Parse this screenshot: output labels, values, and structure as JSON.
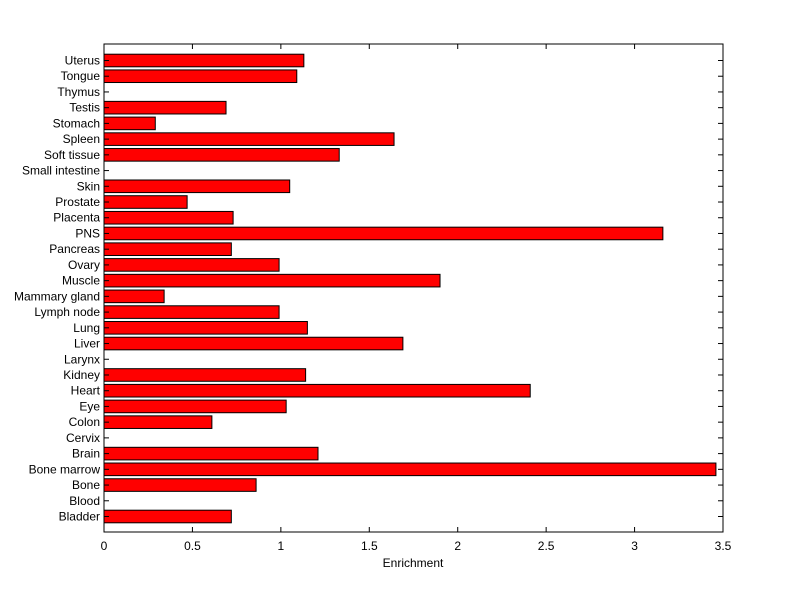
{
  "chart_data": {
    "type": "bar",
    "orientation": "horizontal",
    "title": "",
    "xlabel": "Enrichment",
    "ylabel": "",
    "xlim": [
      0,
      3.5
    ],
    "xticks": [
      0,
      0.5,
      1,
      1.5,
      2,
      2.5,
      3,
      3.5
    ],
    "xtick_labels": [
      "0",
      "0.5",
      "1",
      "1.5",
      "2",
      "2.5",
      "3",
      "3.5"
    ],
    "grid": false,
    "legend": "none",
    "bar_color": "#ff0000",
    "bar_edge_color": "#000000",
    "categories": [
      "Bladder",
      "Blood",
      "Bone",
      "Bone marrow",
      "Brain",
      "Cervix",
      "Colon",
      "Eye",
      "Heart",
      "Kidney",
      "Larynx",
      "Liver",
      "Lung",
      "Lymph node",
      "Mammary gland",
      "Muscle",
      "Ovary",
      "Pancreas",
      "PNS",
      "Placenta",
      "Prostate",
      "Skin",
      "Small intestine",
      "Soft tissue",
      "Spleen",
      "Stomach",
      "Testis",
      "Thymus",
      "Tongue",
      "Uterus"
    ],
    "values": [
      0.72,
      0,
      0.86,
      3.46,
      1.21,
      0,
      0.61,
      1.03,
      2.41,
      1.14,
      0,
      1.69,
      1.15,
      0.99,
      0.34,
      1.9,
      0.99,
      0.72,
      3.16,
      0.73,
      0.47,
      1.05,
      0,
      1.33,
      1.64,
      0.29,
      0.69,
      0,
      1.09,
      1.13
    ]
  }
}
